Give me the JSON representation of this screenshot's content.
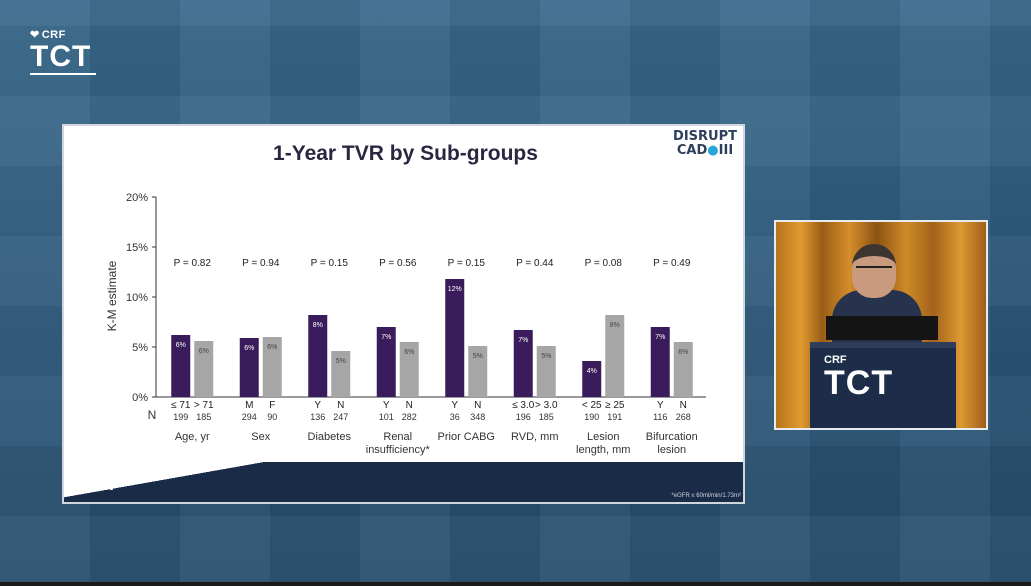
{
  "branding": {
    "crf": "CRF",
    "tct": "TCT",
    "disrupt_line1": "DISRUPT",
    "disrupt_line2": "CAD",
    "disrupt_numeral": "III"
  },
  "slide": {
    "title": "1-Year TVR by Sub-groups",
    "footnote": "*eGFR ≤ 60ml/min/1.73m²"
  },
  "colors": {
    "series_first": "#3a1c5c",
    "series_second": "#a6a6a6",
    "axis": "#333333"
  },
  "chart_data": {
    "type": "bar",
    "ylabel": "K-M estimate",
    "ylim": [
      0,
      20
    ],
    "yticks": [
      "0%",
      "5%",
      "10%",
      "15%",
      "20%"
    ],
    "n_label": "N",
    "groups": [
      {
        "name": "Age, yr",
        "p": "P = 0.82",
        "bars": [
          {
            "label": "≤ 71",
            "n": "199",
            "value": 6.2,
            "text": "6%"
          },
          {
            "label": "> 71",
            "n": "185",
            "value": 5.6,
            "text": "6%"
          }
        ]
      },
      {
        "name": "Sex",
        "p": "P = 0.94",
        "bars": [
          {
            "label": "M",
            "n": "294",
            "value": 5.9,
            "text": "6%"
          },
          {
            "label": "F",
            "n": "90",
            "value": 6.0,
            "text": "6%"
          }
        ]
      },
      {
        "name": "Diabetes",
        "p": "P = 0.15",
        "bars": [
          {
            "label": "Y",
            "n": "136",
            "value": 8.2,
            "text": "8%"
          },
          {
            "label": "N",
            "n": "247",
            "value": 4.6,
            "text": "5%"
          }
        ]
      },
      {
        "name": "Renal|insufficiency*",
        "p": "P = 0.56",
        "bars": [
          {
            "label": "Y",
            "n": "101",
            "value": 7.0,
            "text": "7%"
          },
          {
            "label": "N",
            "n": "282",
            "value": 5.5,
            "text": "6%"
          }
        ]
      },
      {
        "name": "Prior CABG",
        "p": "P = 0.15",
        "bars": [
          {
            "label": "Y",
            "n": "36",
            "value": 11.8,
            "text": "12%"
          },
          {
            "label": "N",
            "n": "348",
            "value": 5.1,
            "text": "5%"
          }
        ]
      },
      {
        "name": "RVD, mm",
        "p": "P = 0.44",
        "bars": [
          {
            "label": "≤ 3.0",
            "n": "196",
            "value": 6.7,
            "text": "7%"
          },
          {
            "label": "> 3.0",
            "n": "185",
            "value": 5.1,
            "text": "5%"
          }
        ]
      },
      {
        "name": "Lesion|length, mm",
        "p": "P = 0.08",
        "bars": [
          {
            "label": "< 25",
            "n": "190",
            "value": 3.6,
            "text": "4%"
          },
          {
            "label": "≥ 25",
            "n": "191",
            "value": 8.2,
            "text": "8%"
          }
        ]
      },
      {
        "name": "Bifurcation|lesion",
        "p": "P = 0.49",
        "bars": [
          {
            "label": "Y",
            "n": "116",
            "value": 7.0,
            "text": "7%"
          },
          {
            "label": "N",
            "n": "268",
            "value": 5.5,
            "text": "6%"
          }
        ]
      }
    ]
  }
}
